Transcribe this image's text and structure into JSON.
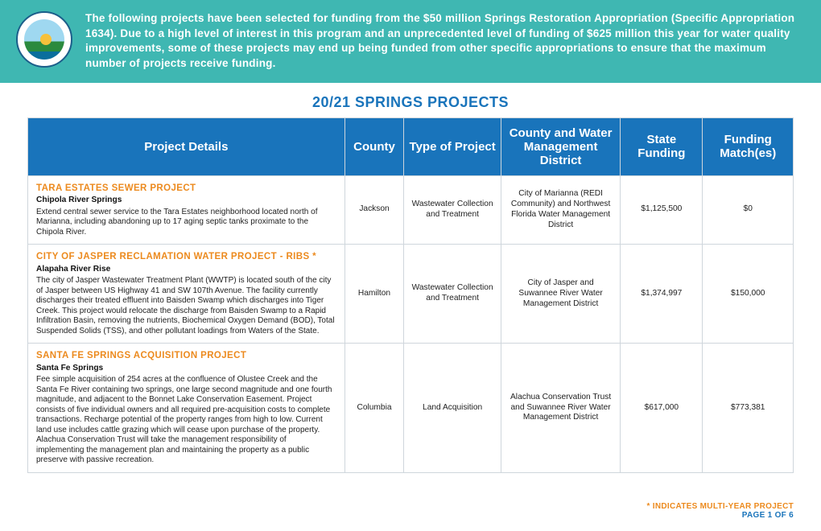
{
  "banner": {
    "text": "The following projects have been selected for funding from the $50 million Springs Restoration Appropriation (Specific Appropriation 1634). Due to a high level of interest in this program and an unprecedented level of funding of $625 million this year for water quality improvements, some of these projects may end up being funded from other specific appropriations to ensure that the maximum number of projects receive funding.",
    "background_color": "#3fb7b2",
    "text_color": "#ffffff"
  },
  "title": "20/21 SPRINGS PROJECTS",
  "colors": {
    "accent_blue": "#1974bb",
    "accent_orange": "#ec8a1e",
    "border": "#cfd6dc"
  },
  "table": {
    "columns": [
      "Project Details",
      "County",
      "Type of Project",
      "County and Water Management District",
      "State Funding",
      "Funding Match(es)"
    ],
    "rows": [
      {
        "title": "TARA ESTATES SEWER PROJECT",
        "subtitle": "Chipola River Springs",
        "desc": "Extend central sewer service to the Tara Estates neighborhood located north of Marianna, including abandoning up to 17 aging septic tanks proximate to the Chipola River.",
        "county": "Jackson",
        "type": "Wastewater Collection and Treatment",
        "district": "City of Marianna (REDI Community) and Northwest Florida Water Management District",
        "funding": "$1,125,500",
        "match": "$0"
      },
      {
        "title": "CITY OF JASPER RECLAMATION WATER PROJECT - RIBS *",
        "subtitle": "Alapaha River Rise",
        "desc": "The city of Jasper Wastewater Treatment Plant (WWTP) is located south of the city of Jasper between US Highway 41 and SW 107th Avenue. The facility currently discharges their treated effluent into Baisden Swamp which discharges into Tiger Creek. This project would relocate the discharge from Baisden Swamp to a Rapid Infiltration Basin, removing the nutrients, Biochemical Oxygen Demand (BOD), Total Suspended Solids (TSS), and other pollutant loadings from Waters of the State.",
        "county": "Hamilton",
        "type": "Wastewater Collection and Treatment",
        "district": "City of Jasper and Suwannee River Water Management District",
        "funding": "$1,374,997",
        "match": "$150,000"
      },
      {
        "title": "SANTA FE SPRINGS ACQUISITION PROJECT",
        "subtitle": "Santa Fe Springs",
        "desc": "Fee simple acquisition of 254 acres at the confluence of Olustee Creek and the Santa Fe River containing two springs, one large second magnitude and one fourth magnitude, and adjacent to the Bonnet Lake Conservation Easement. Project consists of five individual owners and all required pre-acquisition costs to complete transactions. Recharge potential of the property ranges from high to low. Current land use includes cattle grazing which will cease upon purchase of the property. Alachua Conservation Trust will take the management responsibility of implementing the management plan and maintaining the property as a public preserve with passive recreation.",
        "county": "Columbia",
        "type": "Land Acquisition",
        "district": "Alachua Conservation Trust and Suwannee River Water Management District",
        "funding": "$617,000",
        "match": "$773,381"
      }
    ]
  },
  "footer": {
    "note": "* INDICATES MULTI-YEAR PROJECT",
    "page": "PAGE 1 OF 6"
  }
}
